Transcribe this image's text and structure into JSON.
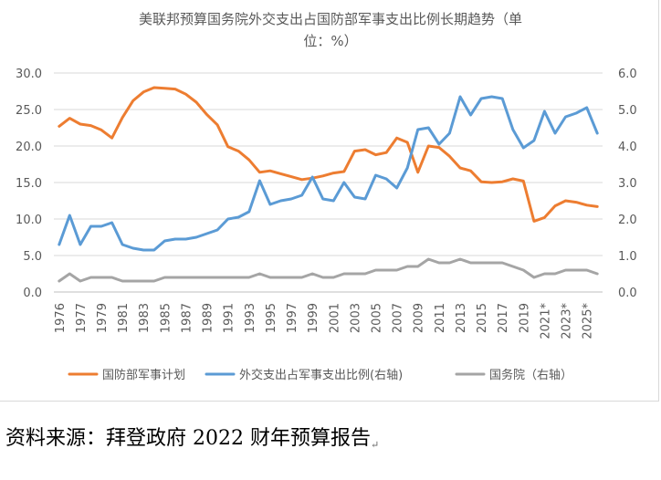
{
  "chart_data": {
    "type": "line",
    "title_lines": [
      "美联邦预算国务院外交支出占国防部军事支出比例长期趋势（单",
      "位：%）"
    ],
    "x_tick_labels": [
      "1976",
      "1977",
      "1979",
      "1981",
      "1983",
      "1985",
      "1987",
      "1989",
      "1991",
      "1993",
      "1995",
      "1997",
      "1999",
      "2001",
      "2003",
      "2005",
      "2007",
      "2009",
      "2011",
      "2013",
      "2015",
      "2017",
      "2019",
      "2021*",
      "2023*",
      "2025*"
    ],
    "left_axis": {
      "ylim": [
        0,
        30
      ],
      "ticks": [
        0,
        5,
        10,
        15,
        20,
        25,
        30
      ],
      "tick_labels": [
        "0.0",
        "5.0",
        "10.0",
        "15.0",
        "20.0",
        "25.0",
        "30.0"
      ]
    },
    "right_axis": {
      "ylim": [
        0,
        6
      ],
      "ticks": [
        0,
        1,
        2,
        3,
        4,
        5,
        6
      ],
      "tick_labels": [
        "0.0",
        "1.0",
        "2.0",
        "3.0",
        "4.0",
        "5.0",
        "6.0"
      ]
    },
    "series": [
      {
        "name": "国防部军事计划",
        "axis": "left",
        "color": "#ED7D31",
        "values": [
          22.7,
          23.8,
          23.0,
          22.8,
          22.2,
          21.1,
          23.9,
          26.2,
          27.4,
          28.0,
          27.9,
          27.8,
          27.1,
          26.0,
          24.3,
          22.9,
          19.9,
          19.3,
          18.1,
          16.4,
          16.6,
          16.2,
          15.8,
          15.4,
          15.6,
          15.9,
          16.3,
          16.5,
          19.3,
          19.5,
          18.8,
          19.1,
          21.1,
          20.5,
          16.4,
          20.0,
          19.8,
          18.6,
          17.0,
          16.6,
          15.1,
          15.0,
          15.1,
          15.5,
          15.2,
          9.7,
          10.2,
          11.8,
          12.5,
          12.3,
          11.9,
          11.7
        ]
      },
      {
        "name": "外交支出占军事支出比例(右轴)",
        "axis": "right",
        "color": "#5B9BD5",
        "values": [
          1.3,
          2.1,
          1.3,
          1.8,
          1.8,
          1.9,
          1.3,
          1.2,
          1.15,
          1.15,
          1.4,
          1.45,
          1.45,
          1.5,
          1.6,
          1.7,
          2.0,
          2.05,
          2.2,
          3.05,
          2.4,
          2.5,
          2.55,
          2.65,
          3.15,
          2.55,
          2.5,
          3.0,
          2.6,
          2.55,
          3.2,
          3.1,
          2.85,
          3.4,
          4.45,
          4.5,
          4.05,
          4.35,
          5.35,
          4.85,
          5.3,
          5.35,
          5.3,
          4.45,
          3.95,
          4.15,
          4.95,
          4.35,
          4.8,
          4.9,
          5.05,
          4.35
        ]
      },
      {
        "name": "国务院（右轴）",
        "axis": "right",
        "color": "#A5A5A5",
        "values": [
          0.3,
          0.5,
          0.3,
          0.4,
          0.4,
          0.4,
          0.3,
          0.3,
          0.3,
          0.3,
          0.4,
          0.4,
          0.4,
          0.4,
          0.4,
          0.4,
          0.4,
          0.4,
          0.4,
          0.5,
          0.4,
          0.4,
          0.4,
          0.4,
          0.5,
          0.4,
          0.4,
          0.5,
          0.5,
          0.5,
          0.6,
          0.6,
          0.6,
          0.7,
          0.7,
          0.9,
          0.8,
          0.8,
          0.9,
          0.8,
          0.8,
          0.8,
          0.8,
          0.7,
          0.6,
          0.4,
          0.5,
          0.5,
          0.6,
          0.6,
          0.6,
          0.5
        ]
      }
    ]
  },
  "source_note": "资料来源：拜登政府 2022 财年预算报告",
  "source_mark": "↵"
}
